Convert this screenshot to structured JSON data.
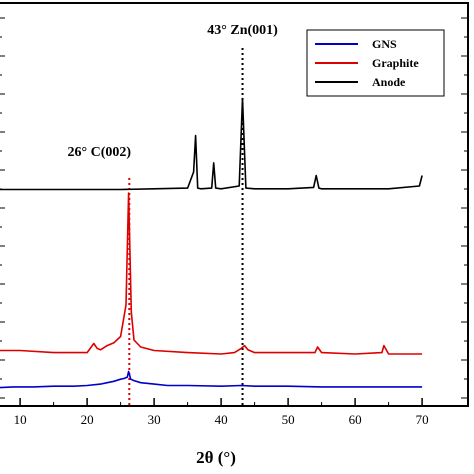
{
  "chart_data": {
    "type": "line",
    "title": "",
    "xlabel": "2θ (°)",
    "ylabel": "",
    "xlim": [
      7,
      70
    ],
    "x_ticks": [
      10,
      20,
      30,
      40,
      50,
      60,
      70
    ],
    "x_tick_labels": [
      "10",
      "20",
      "30",
      "40",
      "50",
      "60",
      "70"
    ],
    "grid": false,
    "legend_position": "top-right",
    "series": [
      {
        "name": "GNS",
        "color": "#0000cc",
        "x": [
          7,
          9,
          12,
          15,
          18,
          20,
          22,
          23,
          24,
          25,
          25.5,
          26,
          26.2,
          26.5,
          27,
          28,
          30,
          32,
          35,
          40,
          43,
          45,
          50,
          55,
          60,
          65,
          70
        ],
        "y": [
          0.02,
          0.03,
          0.03,
          0.04,
          0.04,
          0.05,
          0.07,
          0.09,
          0.11,
          0.14,
          0.15,
          0.17,
          0.25,
          0.14,
          0.12,
          0.09,
          0.07,
          0.05,
          0.05,
          0.04,
          0.05,
          0.04,
          0.04,
          0.03,
          0.03,
          0.03,
          0.03
        ]
      },
      {
        "name": "Graphite",
        "color": "#dd0000",
        "x": [
          7,
          10,
          15,
          20,
          21,
          21.5,
          22,
          23,
          24,
          25,
          25.8,
          26.2,
          26.6,
          27,
          28,
          30,
          35,
          40,
          42,
          43,
          43.5,
          44,
          45,
          50,
          54,
          54.4,
          55,
          60,
          64,
          64.3,
          65,
          70
        ],
        "y": [
          0.55,
          0.55,
          0.52,
          0.52,
          0.65,
          0.58,
          0.56,
          0.62,
          0.66,
          0.75,
          1.2,
          2.8,
          1.1,
          0.7,
          0.6,
          0.55,
          0.52,
          0.5,
          0.52,
          0.58,
          0.62,
          0.56,
          0.52,
          0.52,
          0.52,
          0.6,
          0.52,
          0.5,
          0.52,
          0.62,
          0.5,
          0.5
        ]
      },
      {
        "name": "Anode",
        "color": "#000000",
        "x": [
          7,
          15,
          20,
          25,
          30,
          35,
          35.9,
          36.2,
          36.5,
          37,
          38.6,
          38.9,
          39.2,
          40,
          42.7,
          43.2,
          43.7,
          45,
          50,
          53.8,
          54.2,
          54.6,
          55,
          60,
          65,
          69.6,
          70
        ],
        "y": [
          2.85,
          2.85,
          2.85,
          2.85,
          2.86,
          2.87,
          3.1,
          3.62,
          2.87,
          2.86,
          2.87,
          3.23,
          2.87,
          2.86,
          2.9,
          4.15,
          2.87,
          2.86,
          2.86,
          2.88,
          3.05,
          2.87,
          2.86,
          2.86,
          2.86,
          2.9,
          3.05
        ]
      }
    ],
    "annotations": [
      {
        "text": "43° Zn(001)",
        "x": 43.2,
        "line_color": "#000000"
      },
      {
        "text": "26° C(002)",
        "x": 26.3,
        "line_color": "#dd0000"
      }
    ]
  }
}
